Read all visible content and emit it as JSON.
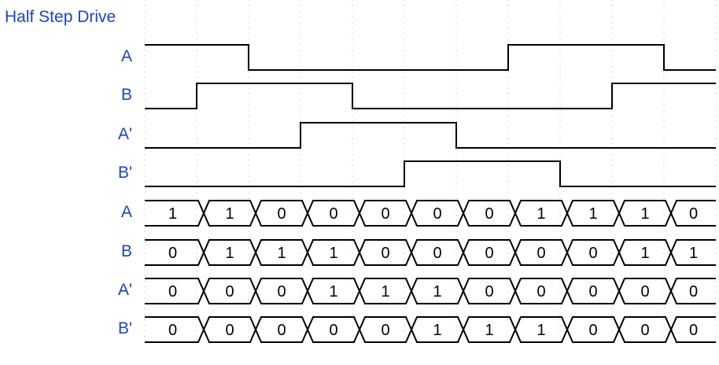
{
  "title": "Half Step Drive",
  "label_color": "#1a44c8",
  "waves": [
    {
      "label": "A",
      "levels": [
        1,
        1,
        0,
        0,
        0,
        0,
        0,
        1,
        1,
        1,
        0
      ]
    },
    {
      "label": "B",
      "levels": [
        0,
        1,
        1,
        1,
        0,
        0,
        0,
        0,
        0,
        1,
        1
      ]
    },
    {
      "label": "A'",
      "levels": [
        0,
        0,
        0,
        1,
        1,
        1,
        0,
        0,
        0,
        0,
        0
      ]
    },
    {
      "label": "B'",
      "levels": [
        0,
        0,
        0,
        0,
        0,
        1,
        1,
        1,
        0,
        0,
        0
      ]
    }
  ],
  "buses": [
    {
      "label": "A",
      "values": [
        "1",
        "1",
        "0",
        "0",
        "0",
        "0",
        "0",
        "1",
        "1",
        "1",
        "0"
      ]
    },
    {
      "label": "B",
      "values": [
        "0",
        "1",
        "1",
        "1",
        "0",
        "0",
        "0",
        "0",
        "0",
        "1",
        "1"
      ]
    },
    {
      "label": "A'",
      "values": [
        "0",
        "0",
        "0",
        "1",
        "1",
        "1",
        "0",
        "0",
        "0",
        "0",
        "0"
      ]
    },
    {
      "label": "B'",
      "values": [
        "0",
        "0",
        "0",
        "0",
        "0",
        "1",
        "1",
        "1",
        "0",
        "0",
        "0"
      ]
    }
  ]
}
